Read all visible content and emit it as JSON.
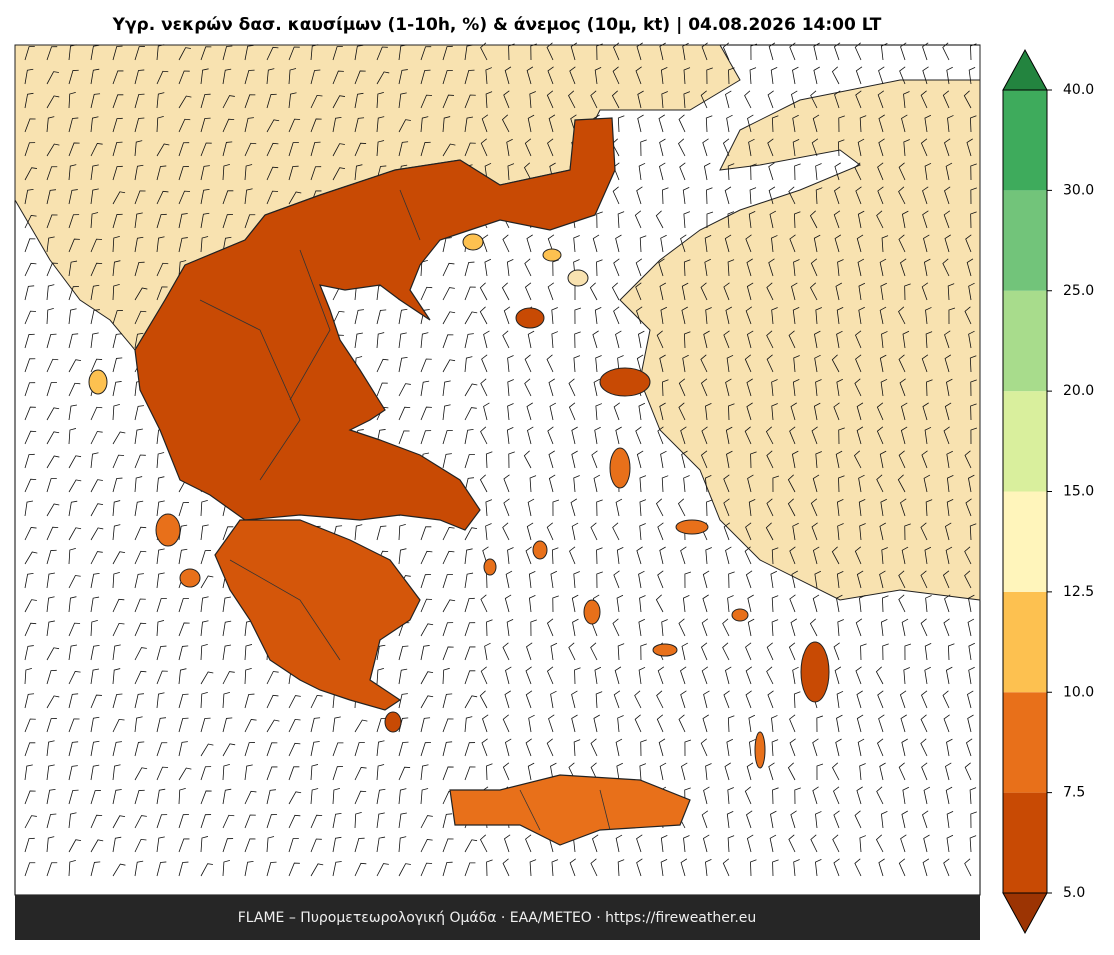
{
  "title": "Υγρ. νεκρών δασ. καυσίμων (1-10h, %) & άνεμος (10μ, kt)  |  04.08.2026 14:00 LT",
  "footer": "FLAME – Πυρομετεωρολογική Ομάδα · ΕΑΑ/METEO · https://fireweather.eu",
  "colorbar": {
    "ticks": [
      {
        "value": 5,
        "label": "5.0"
      },
      7.5,
      {
        "value": 10,
        "label": "10.0"
      },
      12.5,
      {
        "value": 15,
        "label": "15.0"
      },
      {
        "value": 20,
        "label": "20.0"
      },
      {
        "value": 25,
        "label": "25.0"
      },
      {
        "value": 30,
        "label": "30.0"
      },
      {
        "value": 40,
        "label": "40.0"
      }
    ],
    "colors": [
      "#c84a04",
      "#e8701a",
      "#fdc150",
      "#fff5bb",
      "#d9ef9d",
      "#a8dc8c",
      "#72c47a",
      "#3eab5c"
    ],
    "under_color": "#9c3403",
    "over_color": "#23843f"
  }
}
